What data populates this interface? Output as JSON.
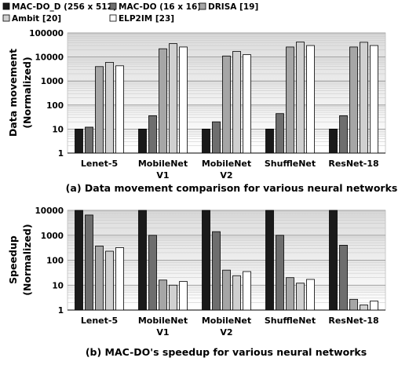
{
  "legend": [
    {
      "name": "MAC-DO_D (256 x 512)",
      "color": "#1a1a1a"
    },
    {
      "name": "MAC-DO (16 x 16)",
      "color": "#6e6e6e"
    },
    {
      "name": "DRISA [19]",
      "color": "#a6a6a6"
    },
    {
      "name": "Ambit [20]",
      "color": "#d0d0d0"
    },
    {
      "name": "ELP2IM [23]",
      "color": "#ffffff"
    }
  ],
  "chart_data": [
    {
      "type": "bar",
      "scale": "log",
      "caption": "(a) Data movement comparison for various neural networks",
      "ylabel": "Data movement",
      "ylabel2": "(Normalized)",
      "ylim": [
        1,
        100000
      ],
      "yticks": [
        "1",
        "10",
        "100",
        "1000",
        "10000",
        "100000"
      ],
      "categories": [
        [
          "Lenet-5"
        ],
        [
          "MobileNet",
          "V1"
        ],
        [
          "MobileNet",
          "V2"
        ],
        [
          "ShuffleNet"
        ],
        [
          "ResNet-18"
        ]
      ],
      "series": [
        {
          "name": "MAC-DO_D (256 x 512)",
          "values": [
            10,
            10,
            10,
            10,
            10
          ]
        },
        {
          "name": "MAC-DO (16 x 16)",
          "values": [
            12,
            36,
            20,
            44,
            36
          ]
        },
        {
          "name": "DRISA [19]",
          "values": [
            4000,
            22000,
            11000,
            26000,
            26000
          ]
        },
        {
          "name": "Ambit [20]",
          "values": [
            6000,
            36000,
            17000,
            42000,
            41000
          ]
        },
        {
          "name": "ELP2IM [23]",
          "values": [
            4300,
            26000,
            12500,
            30000,
            30000
          ]
        }
      ]
    },
    {
      "type": "bar",
      "scale": "log",
      "caption": "(b) MAC-DO's speedup for various neural networks",
      "ylabel": "Speedup",
      "ylabel2": "(Normalized)",
      "ylim": [
        1,
        10000
      ],
      "yticks": [
        "1",
        "10",
        "100",
        "1000",
        "10000"
      ],
      "categories": [
        [
          "Lenet-5"
        ],
        [
          "MobileNet",
          "V1"
        ],
        [
          "MobileNet",
          "V2"
        ],
        [
          "ShuffleNet"
        ],
        [
          "ResNet-18"
        ]
      ],
      "series": [
        {
          "name": "MAC-DO_D (256 x 512)",
          "values": [
            10000,
            10000,
            10000,
            10000,
            10000
          ]
        },
        {
          "name": "MAC-DO (16 x 16)",
          "values": [
            6500,
            1000,
            1400,
            1000,
            400
          ]
        },
        {
          "name": "DRISA [19]",
          "values": [
            370,
            16,
            40,
            20,
            2.7
          ]
        },
        {
          "name": "Ambit [20]",
          "values": [
            230,
            10,
            24,
            12,
            1.6
          ]
        },
        {
          "name": "ELP2IM [23]",
          "values": [
            320,
            14,
            35,
            17,
            2.3
          ]
        }
      ]
    }
  ]
}
